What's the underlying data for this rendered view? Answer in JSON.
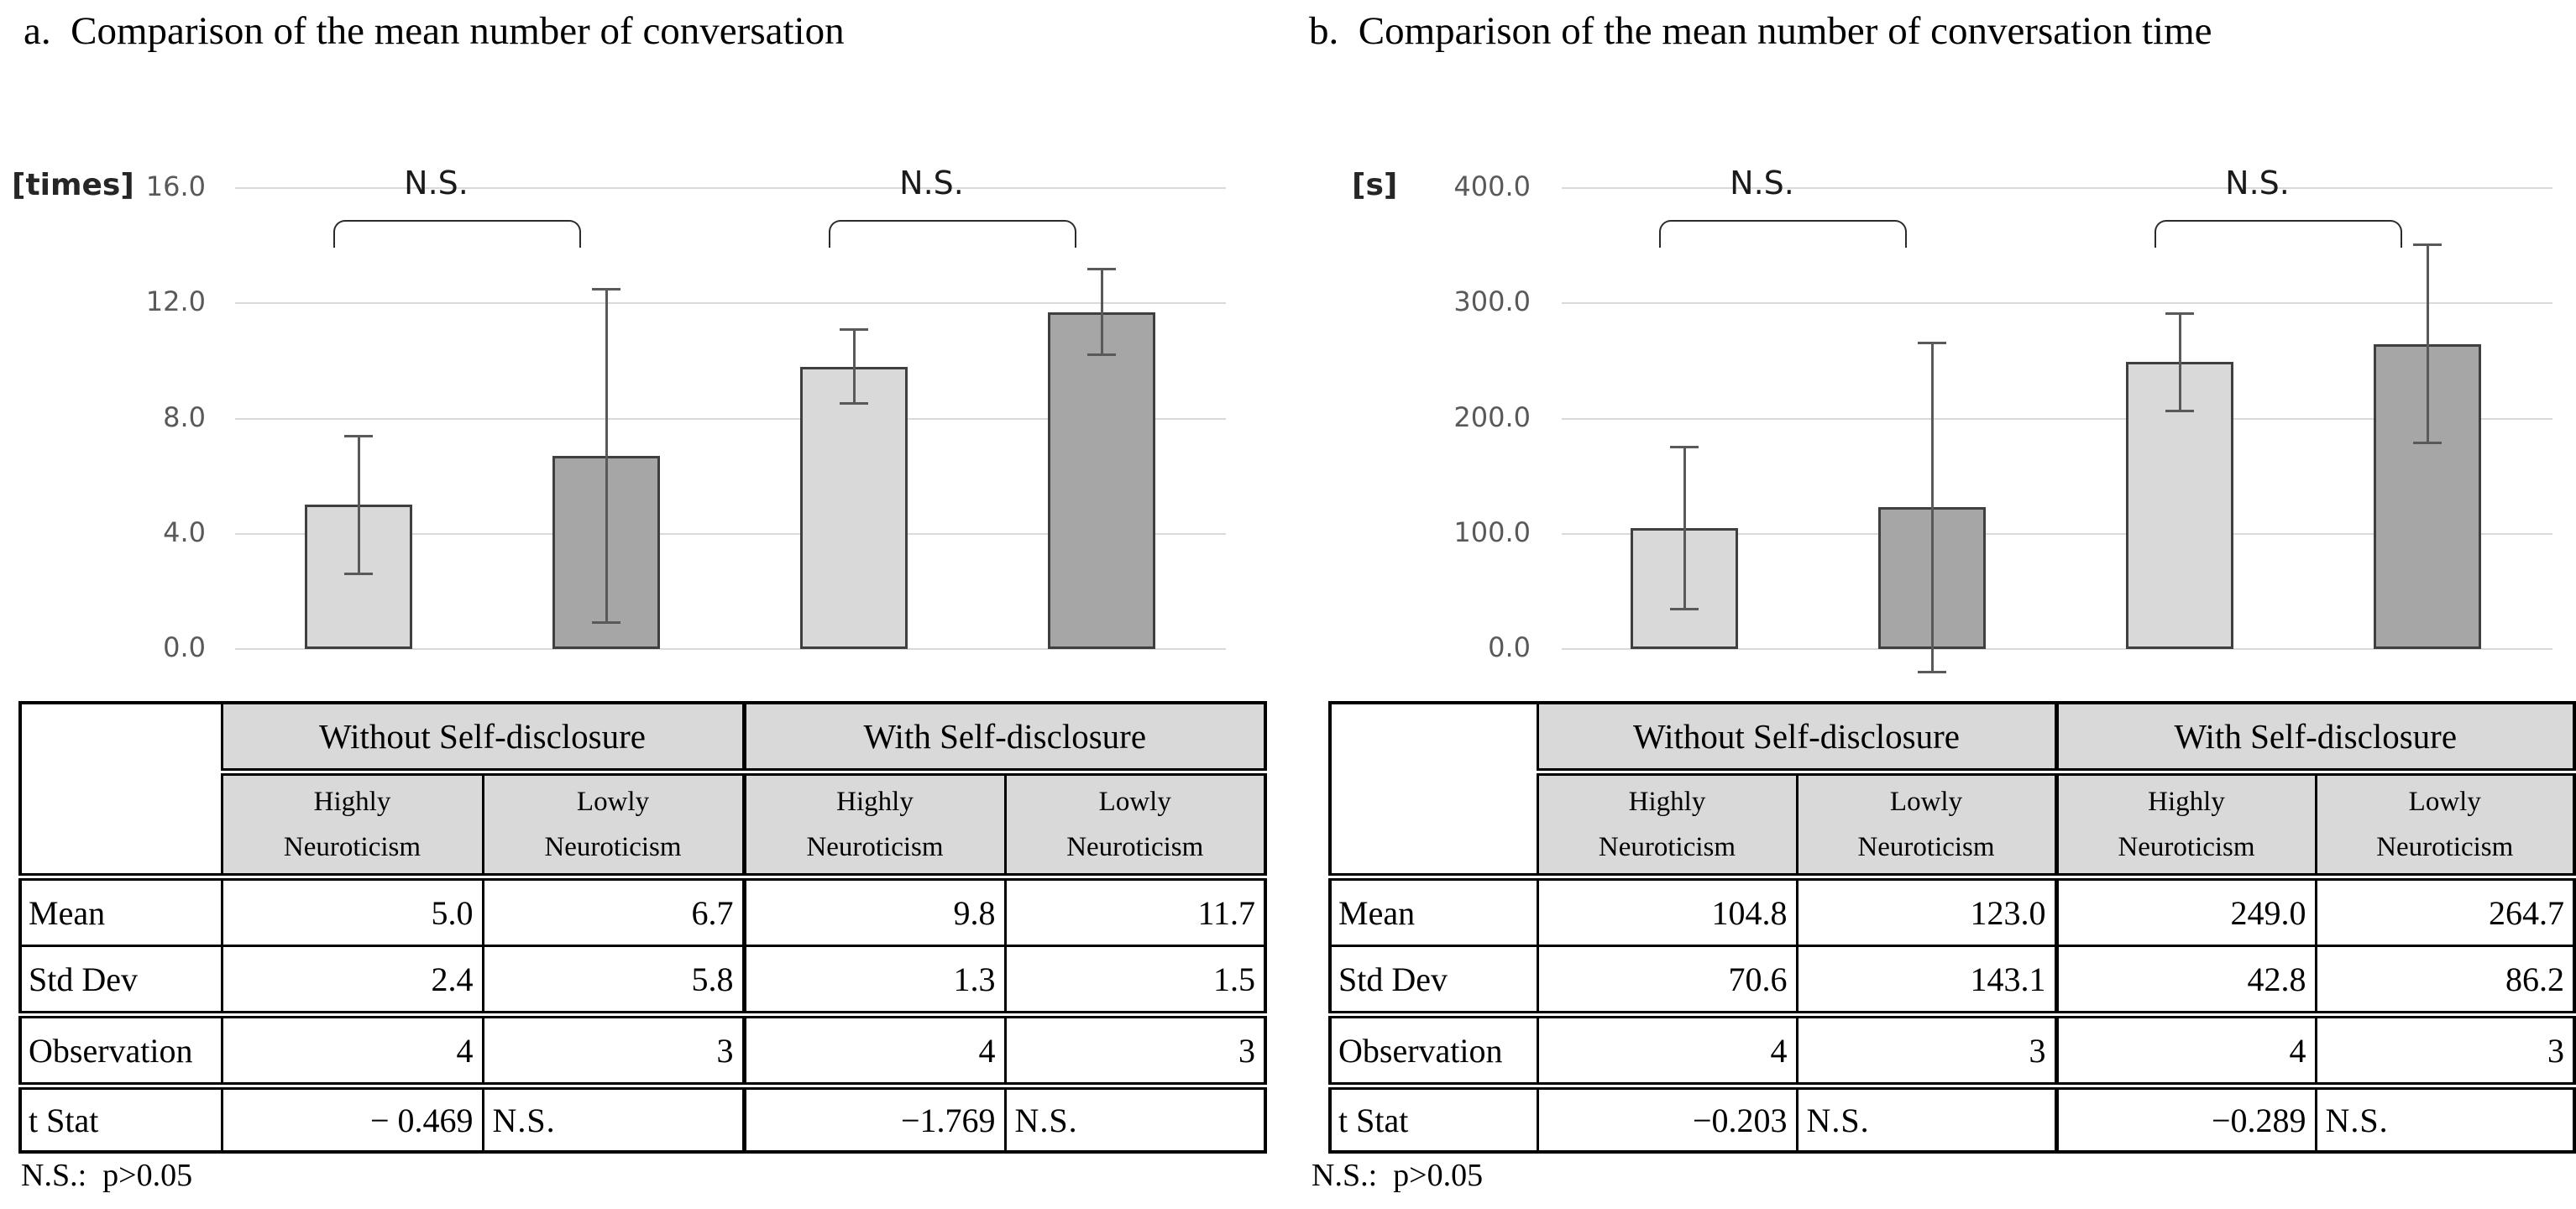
{
  "chart_data": [
    {
      "type": "bar",
      "title": "a.  Comparison of the mean number of conversation",
      "unit_label": "[times]",
      "ylim": [
        0,
        16
      ],
      "ytick_values": [
        0,
        4,
        8,
        12,
        16
      ],
      "yticks": [
        "0.0",
        "4.0",
        "8.0",
        "12.0",
        "16.0"
      ],
      "grid": true,
      "legend_position": "none",
      "categories": [
        "Without Self-disclosure / Highly Neuroticism",
        "Without Self-disclosure / Lowly Neuroticism",
        "With Self-disclosure / Highly Neuroticism",
        "With Self-disclosure / Lowly Neuroticism"
      ],
      "values": [
        5.0,
        6.7,
        9.8,
        11.7
      ],
      "std_dev": [
        2.4,
        5.8,
        1.3,
        1.5
      ],
      "observations": [
        4,
        3,
        4,
        3
      ],
      "bar_colors": [
        "#d9d9d9",
        "#a6a6a6",
        "#d9d9d9",
        "#a6a6a6"
      ],
      "annotations": [
        {
          "label": "N.S.",
          "between": [
            0,
            1
          ]
        },
        {
          "label": "N.S.",
          "between": [
            2,
            3
          ]
        }
      ]
    },
    {
      "type": "bar",
      "title": "b.  Comparison of the mean number of conversation time",
      "unit_label": "[s]",
      "ylim": [
        0,
        400
      ],
      "ytick_values": [
        0,
        100,
        200,
        300,
        400
      ],
      "yticks": [
        "0.0",
        "100.0",
        "200.0",
        "300.0",
        "400.0"
      ],
      "grid": true,
      "legend_position": "none",
      "categories": [
        "Without Self-disclosure / Highly Neuroticism",
        "Without Self-disclosure / Lowly Neuroticism",
        "With Self-disclosure / Highly Neuroticism",
        "With Self-disclosure / Lowly Neuroticism"
      ],
      "values": [
        104.8,
        123.0,
        249.0,
        264.7
      ],
      "std_dev": [
        70.6,
        143.1,
        42.8,
        86.2
      ],
      "observations": [
        4,
        3,
        4,
        3
      ],
      "bar_colors": [
        "#d9d9d9",
        "#a6a6a6",
        "#d9d9d9",
        "#a6a6a6"
      ],
      "annotations": [
        {
          "label": "N.S.",
          "between": [
            0,
            1
          ]
        },
        {
          "label": "N.S.",
          "between": [
            2,
            3
          ]
        }
      ]
    }
  ],
  "tables": [
    {
      "group_headers": [
        "Without Self-disclosure",
        "With Self-disclosure"
      ],
      "sub_headers": [
        "Highly\nNeuroticism",
        "Lowly\nNeuroticism",
        "Highly\nNeuroticism",
        "Lowly\nNeuroticism"
      ],
      "rows": [
        {
          "label": "Mean",
          "values": [
            "5.0",
            "6.7",
            "9.8",
            "11.7"
          ]
        },
        {
          "label": "Std Dev",
          "values": [
            "2.4",
            "5.8",
            "1.3",
            "1.5"
          ]
        },
        {
          "label": "Observation",
          "values": [
            "4",
            "3",
            "4",
            "3"
          ]
        },
        {
          "label": "t Stat",
          "values": [
            "− 0.469",
            "N.S.",
            "−1.769",
            "N.S."
          ]
        }
      ],
      "footnote": "N.S.:  p>0.05"
    },
    {
      "group_headers": [
        "Without Self-disclosure",
        "With Self-disclosure"
      ],
      "sub_headers": [
        "Highly\nNeuroticism",
        "Lowly\nNeuroticism",
        "Highly\nNeuroticism",
        "Lowly\nNeuroticism"
      ],
      "rows": [
        {
          "label": "Mean",
          "values": [
            "104.8",
            "123.0",
            "249.0",
            "264.7"
          ]
        },
        {
          "label": "Std Dev",
          "values": [
            "70.6",
            "143.1",
            "42.8",
            "86.2"
          ]
        },
        {
          "label": "Observation",
          "values": [
            "4",
            "3",
            "4",
            "3"
          ]
        },
        {
          "label": "t Stat",
          "values": [
            "−0.203",
            "N.S.",
            "−0.289",
            "N.S."
          ]
        }
      ],
      "footnote": "N.S.:  p>0.05"
    }
  ],
  "colors": {
    "bar_light": "#d9d9d9",
    "bar_dark": "#a6a6a6",
    "bar_border": "#3f3f3f",
    "error_bar": "#595959",
    "gridline": "#d9d9d9",
    "tick_text": "#595959",
    "header_bg": "#d9d9d9",
    "bracket": "#2b2b2b",
    "text": "#000000"
  }
}
